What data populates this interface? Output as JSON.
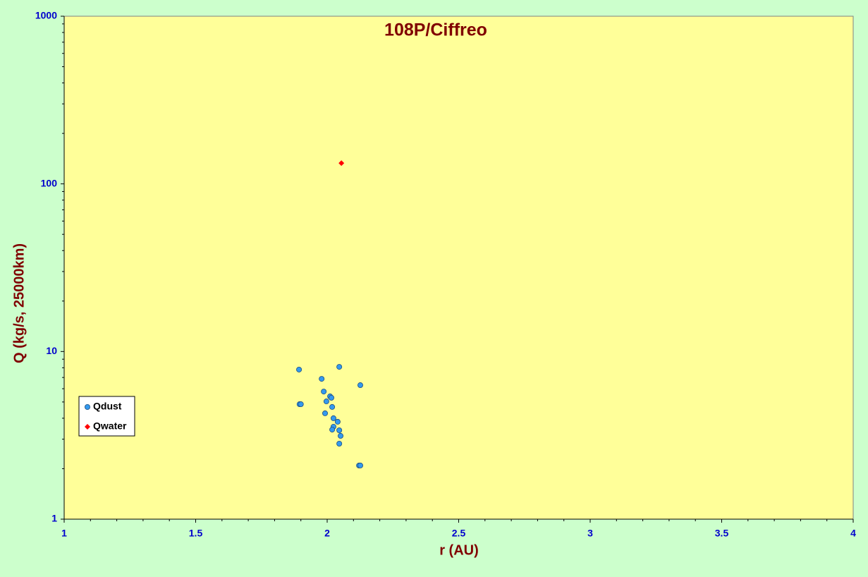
{
  "chart_data": {
    "type": "scatter",
    "title": "108P/Ciffreo",
    "x_label": "r (AU)",
    "y_label": "Q (kg/s, 25000km)",
    "xlim": [
      1,
      4
    ],
    "xticks": [
      1,
      1.5,
      2,
      2.5,
      3,
      3.5,
      4
    ],
    "ylim": [
      1,
      1000
    ],
    "yticks": [
      1,
      10,
      100,
      1000
    ],
    "yscale": "log",
    "legend": "center left",
    "series": [
      {
        "name": "Qdust",
        "color": "#3399ee",
        "marker": "circle",
        "x": [
          1.893,
          1.895,
          1.9,
          1.979,
          1.987,
          1.997,
          2.011,
          2.016,
          2.019,
          1.992,
          2.024,
          2.04,
          2.024,
          2.019,
          2.046,
          2.051,
          2.046,
          2.046,
          2.126,
          2.121,
          2.126
        ],
        "values": [
          7.8,
          4.85,
          4.85,
          6.87,
          5.77,
          5.04,
          5.4,
          5.3,
          4.67,
          4.28,
          4.0,
          3.81,
          3.56,
          3.42,
          3.39,
          3.14,
          2.82,
          8.1,
          6.3,
          2.09,
          2.09
        ]
      },
      {
        "name": "Qwater",
        "color": "#ff0000",
        "marker": "diamond",
        "x": [
          2.054
        ],
        "values": [
          133
        ]
      }
    ]
  }
}
